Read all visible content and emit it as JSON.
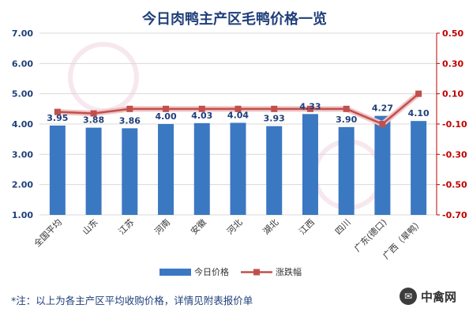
{
  "chart_data": {
    "type": "bar+line",
    "title": "今日肉鸭主产区毛鸭价格一览",
    "categories": [
      "全国平均",
      "山东",
      "江苏",
      "河南",
      "安徽",
      "河北",
      "湖北",
      "江西",
      "四川",
      "广东(德口)",
      "广西（旱鸭）"
    ],
    "series": [
      {
        "name": "今日价格",
        "type": "bar",
        "axis": "left",
        "color": "#3b78c2",
        "values": [
          3.95,
          3.88,
          3.86,
          4.0,
          4.03,
          4.04,
          3.93,
          4.33,
          3.9,
          4.27,
          4.1
        ]
      },
      {
        "name": "涨跌幅",
        "type": "line",
        "axis": "right",
        "color": "#c0504d",
        "values": [
          -0.02,
          -0.03,
          0.0,
          0.0,
          0.0,
          0.0,
          0.0,
          0.0,
          0.0,
          -0.1,
          0.1
        ]
      }
    ],
    "data_labels": [
      "3.95",
      "3.88",
      "3.86",
      "4.00",
      "4.03",
      "4.04",
      "3.93",
      "4.33",
      "3.90",
      "4.27",
      "4.10"
    ],
    "y_left": {
      "min": 1.0,
      "max": 7.0,
      "ticks": [
        "1.00",
        "2.00",
        "3.00",
        "4.00",
        "5.00",
        "6.00",
        "7.00"
      ]
    },
    "y_right": {
      "min": -0.7,
      "max": 0.5,
      "ticks": [
        "-0.70",
        "-0.50",
        "-0.30",
        "-0.10",
        "0.10",
        "0.30",
        "0.50"
      ]
    },
    "grid": true,
    "legend": "bottom-center"
  },
  "footnote": "*注：以上为各主产区平均收购价格，详情见附表报价单",
  "brand": {
    "name": "中禽网",
    "icon": "wechat-icon"
  },
  "colors": {
    "title": "#1f3f7a",
    "bar": "#3b78c2",
    "line": "#c0504d",
    "left_axis": "#1f3f7a",
    "right_axis": "#c00000"
  }
}
